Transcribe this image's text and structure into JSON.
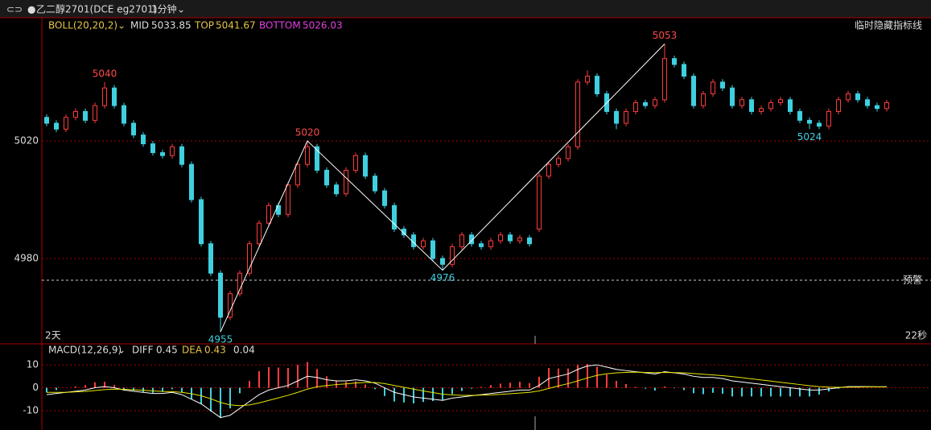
{
  "header": {
    "symbol": "乙二醇2701(DCE eg2701)",
    "period": "1分钟"
  },
  "boll": {
    "name": "BOLL(20,20,2)",
    "mid": {
      "label": "MID",
      "value": 5033.85
    },
    "top": {
      "label": "TOP",
      "value": 5041.67
    },
    "bottom": {
      "label": "BOTTOM",
      "value": 5026.03
    }
  },
  "hide_button": "临时隐藏指标线",
  "price": {
    "ylim": [
      4951.5,
      5061.9
    ],
    "yticks": [
      5020,
      4980
    ],
    "alert": {
      "label": "预警",
      "value": 4972.6
    },
    "left_note": "2天",
    "right_note": "22秒",
    "candles": [
      [
        5028,
        5029,
        5025,
        5026
      ],
      [
        5026,
        5027,
        5023,
        5024
      ],
      [
        5024,
        5029,
        5023,
        5028
      ],
      [
        5028,
        5031,
        5027,
        5030
      ],
      [
        5030,
        5031,
        5026,
        5027
      ],
      [
        5027,
        5033,
        5026,
        5032
      ],
      [
        5032,
        5040,
        5031,
        5038
      ],
      [
        5038,
        5039,
        5031,
        5032
      ],
      [
        5032,
        5033,
        5025,
        5026
      ],
      [
        5026,
        5027,
        5021,
        5022
      ],
      [
        5022,
        5023,
        5018,
        5019
      ],
      [
        5019,
        5020,
        5015,
        5016
      ],
      [
        5016,
        5017,
        5014,
        5015
      ],
      [
        5015,
        5019,
        5014,
        5018
      ],
      [
        5018,
        5019,
        5011,
        5012
      ],
      [
        5012,
        5013,
        4999,
        5000
      ],
      [
        5000,
        5001,
        4984,
        4985
      ],
      [
        4985,
        4986,
        4974,
        4975
      ],
      [
        4975,
        4976,
        4955,
        4960
      ],
      [
        4960,
        4969,
        4959,
        4968
      ],
      [
        4968,
        4976,
        4967,
        4975
      ],
      [
        4975,
        4986,
        4974,
        4985
      ],
      [
        4985,
        4993,
        4984,
        4992
      ],
      [
        4992,
        4999,
        4991,
        4998
      ],
      [
        4998,
        4999,
        4994,
        4995
      ],
      [
        4995,
        5006,
        4994,
        5005
      ],
      [
        5005,
        5013,
        5004,
        5012
      ],
      [
        5012,
        5020,
        5011,
        5018
      ],
      [
        5018,
        5019,
        5009,
        5010
      ],
      [
        5010,
        5011,
        5004,
        5005
      ],
      [
        5005,
        5006,
        5001,
        5002
      ],
      [
        5002,
        5011,
        5001,
        5010
      ],
      [
        5010,
        5016,
        5009,
        5015
      ],
      [
        5015,
        5016,
        5007,
        5008
      ],
      [
        5008,
        5009,
        5002,
        5003
      ],
      [
        5003,
        5004,
        4997,
        4998
      ],
      [
        4998,
        4999,
        4989,
        4990
      ],
      [
        4990,
        4991,
        4987,
        4988
      ],
      [
        4988,
        4989,
        4983,
        4984
      ],
      [
        4984,
        4987,
        4983,
        4986
      ],
      [
        4986,
        4987,
        4979,
        4980
      ],
      [
        4980,
        4981,
        4976,
        4978
      ],
      [
        4978,
        4985,
        4977,
        4984
      ],
      [
        4984,
        4989,
        4983,
        4988
      ],
      [
        4988,
        4989,
        4984,
        4985
      ],
      [
        4985,
        4986,
        4983,
        4984
      ],
      [
        4984,
        4987,
        4983,
        4986
      ],
      [
        4986,
        4989,
        4985,
        4988
      ],
      [
        4988,
        4989,
        4985,
        4986
      ],
      [
        4986,
        4988,
        4985,
        4987
      ],
      [
        4987,
        4988,
        4984,
        4985
      ],
      [
        4990,
        5009,
        4989,
        5008
      ],
      [
        5008,
        5013,
        5007,
        5012
      ],
      [
        5012,
        5015,
        5011,
        5014
      ],
      [
        5014,
        5019,
        5013,
        5018
      ],
      [
        5018,
        5041,
        5017,
        5040
      ],
      [
        5040,
        5044,
        5039,
        5042
      ],
      [
        5042,
        5043,
        5035,
        5036
      ],
      [
        5036,
        5037,
        5029,
        5030
      ],
      [
        5030,
        5031,
        5024,
        5026
      ],
      [
        5026,
        5031,
        5025,
        5030
      ],
      [
        5030,
        5034,
        5029,
        5033
      ],
      [
        5033,
        5034,
        5031,
        5032
      ],
      [
        5032,
        5035,
        5031,
        5034
      ],
      [
        5034,
        5053,
        5033,
        5048
      ],
      [
        5048,
        5049,
        5045,
        5046
      ],
      [
        5046,
        5047,
        5041,
        5042
      ],
      [
        5042,
        5043,
        5031,
        5032
      ],
      [
        5032,
        5037,
        5031,
        5036
      ],
      [
        5036,
        5041,
        5035,
        5040
      ],
      [
        5040,
        5041,
        5037,
        5038
      ],
      [
        5038,
        5039,
        5031,
        5032
      ],
      [
        5032,
        5035,
        5031,
        5034
      ],
      [
        5034,
        5035,
        5029,
        5030
      ],
      [
        5030,
        5032,
        5029,
        5031
      ],
      [
        5031,
        5034,
        5030,
        5033
      ],
      [
        5033,
        5035,
        5032,
        5034
      ],
      [
        5034,
        5035,
        5029,
        5030
      ],
      [
        5030,
        5031,
        5026,
        5027
      ],
      [
        5027,
        5028,
        5024,
        5026
      ],
      [
        5026,
        5027,
        5024,
        5025
      ],
      [
        5025,
        5031,
        5024,
        5030
      ],
      [
        5030,
        5035,
        5029,
        5034
      ],
      [
        5034,
        5037,
        5033,
        5036
      ],
      [
        5036,
        5037,
        5033,
        5034
      ],
      [
        5034,
        5035,
        5031,
        5032
      ],
      [
        5032,
        5033,
        5030,
        5031
      ],
      [
        5031,
        5034,
        5030,
        5033
      ]
    ],
    "pivots": [
      {
        "index": 6,
        "value": 5040,
        "kind": "high"
      },
      {
        "index": 18,
        "value": 4955,
        "kind": "low"
      },
      {
        "index": 27,
        "value": 5020,
        "kind": "high"
      },
      {
        "index": 41,
        "value": 4976,
        "kind": "low"
      },
      {
        "index": 64,
        "value": 5053,
        "kind": "high"
      },
      {
        "index": 79,
        "value": 5024,
        "kind": "low"
      }
    ]
  },
  "macd": {
    "name": "MACD(12,26,9)",
    "diff": {
      "label": "DIFF",
      "value": 0.45
    },
    "dea": {
      "label": "DEA",
      "value": 0.43
    },
    "macd_value": 0.04,
    "ylim": [
      -13.5,
      18.1
    ],
    "yticks": [
      10,
      0,
      -10
    ],
    "diff_values": [
      -3,
      -2.5,
      -2,
      -1.5,
      -1,
      0,
      0.5,
      0,
      -1,
      -1.5,
      -2,
      -2.5,
      -2.5,
      -2,
      -3,
      -5,
      -7,
      -10,
      -13,
      -12,
      -9,
      -6,
      -3,
      -1,
      0,
      1,
      3,
      5,
      4.5,
      3.5,
      3,
      3,
      3.5,
      3,
      2,
      0,
      -2,
      -3,
      -4,
      -4.5,
      -5,
      -5.5,
      -4.5,
      -4,
      -3.5,
      -3,
      -2.5,
      -2,
      -1.5,
      -1,
      -1,
      1,
      4,
      5,
      6,
      8,
      9.5,
      10,
      9,
      8,
      7.5,
      7,
      6.5,
      6,
      7,
      6.5,
      6,
      5,
      4.5,
      4.5,
      4,
      3,
      2.5,
      2,
      1.5,
      1,
      0.5,
      0,
      -0.5,
      -1,
      -1,
      -0.5,
      0,
      0.5,
      0.5,
      0.5,
      0.4,
      0.45
    ],
    "dea_values": [
      -2,
      -2,
      -2,
      -1.8,
      -1.6,
      -1.2,
      -0.8,
      -0.6,
      -0.7,
      -0.9,
      -1.1,
      -1.4,
      -1.6,
      -1.7,
      -2,
      -2.6,
      -3.5,
      -4.8,
      -6.4,
      -7.5,
      -7.8,
      -7.5,
      -6.6,
      -5.5,
      -4.4,
      -3.3,
      -2,
      -0.6,
      0.4,
      1,
      1.4,
      1.7,
      2.1,
      2.3,
      2.3,
      1.8,
      1,
      0.2,
      -0.6,
      -1.4,
      -2.1,
      -2.8,
      -3.1,
      -3.3,
      -3.3,
      -3.2,
      -3.1,
      -2.9,
      -2.6,
      -2.3,
      -2,
      -1.4,
      -0.3,
      0.8,
      1.8,
      3,
      4.3,
      5.4,
      6.1,
      6.5,
      6.7,
      6.8,
      6.7,
      6.6,
      6.7,
      6.6,
      6.5,
      6.2,
      5.9,
      5.6,
      5.3,
      4.9,
      4.4,
      3.9,
      3.4,
      2.9,
      2.4,
      1.9,
      1.4,
      0.9,
      0.5,
      0.3,
      0.2,
      0.3,
      0.3,
      0.4,
      0.4,
      0.43
    ],
    "hist_values": [
      -2,
      -1,
      0,
      0.6,
      1.2,
      2.4,
      2.6,
      1.2,
      -0.6,
      -1.2,
      -1.8,
      -2.2,
      -1.8,
      -0.6,
      -2,
      -4.8,
      -7,
      -10.4,
      -13.2,
      -9,
      -2.4,
      3,
      7.2,
      9,
      8.8,
      8.6,
      10,
      11.2,
      8.2,
      5,
      3.2,
      2.6,
      2.8,
      1.4,
      -0.6,
      -3.6,
      -6,
      -6.4,
      -6.8,
      -6.2,
      -5.8,
      -5.4,
      -2.8,
      -1.4,
      -0.4,
      0.4,
      1.2,
      1.8,
      2.2,
      2.6,
      2,
      4.8,
      8.6,
      8.4,
      8.4,
      10,
      10.4,
      9.2,
      5.8,
      3,
      1.6,
      0.4,
      -0.4,
      -1.2,
      0.6,
      -0.2,
      -1,
      -2.4,
      -2.8,
      -2.2,
      -2.6,
      -3.8,
      -3.8,
      -3.8,
      -3.8,
      -3.8,
      -3.8,
      -3.8,
      -3.8,
      -3.8,
      -3,
      -1.6,
      -0.4,
      0.4,
      0.4,
      0.2,
      0,
      0.04
    ]
  }
}
